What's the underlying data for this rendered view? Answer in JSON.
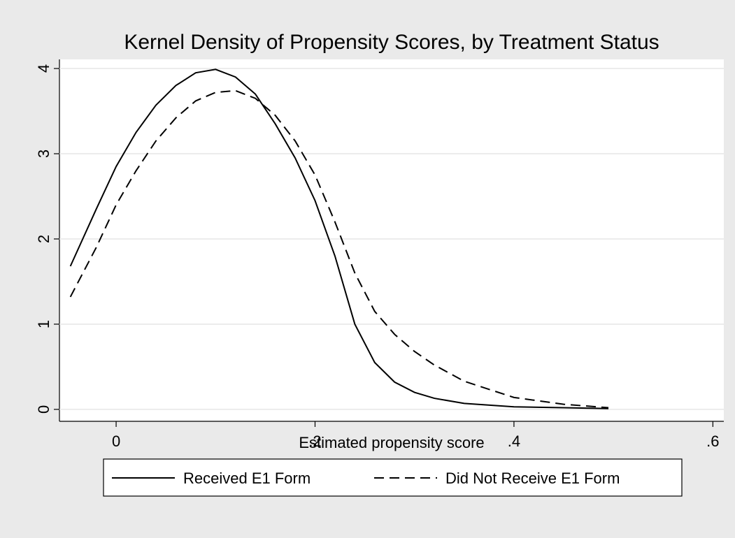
{
  "chart_data": {
    "type": "line",
    "title": "Kernel Density of Propensity Scores, by Treatment Status",
    "x_label": "Estimated propensity score",
    "x": [
      -0.046,
      -0.02,
      0,
      0.02,
      0.04,
      0.06,
      0.08,
      0.1,
      0.12,
      0.14,
      0.16,
      0.18,
      0.2,
      0.22,
      0.24,
      0.26,
      0.28,
      0.3,
      0.32,
      0.35,
      0.4,
      0.45,
      0.495
    ],
    "series": [
      {
        "name": "Received E1 Form",
        "color": "#000000",
        "line_style": "solid",
        "values": [
          1.68,
          2.35,
          2.85,
          3.25,
          3.57,
          3.8,
          3.95,
          3.99,
          3.9,
          3.7,
          3.35,
          2.95,
          2.45,
          1.8,
          1.0,
          0.55,
          0.32,
          0.2,
          0.13,
          0.07,
          0.03,
          0.02,
          0.01
        ]
      },
      {
        "name": "Did Not Receive E1 Form",
        "color": "#000000",
        "line_style": "dashed",
        "values": [
          1.32,
          1.9,
          2.4,
          2.8,
          3.15,
          3.42,
          3.62,
          3.72,
          3.74,
          3.65,
          3.45,
          3.15,
          2.75,
          2.2,
          1.6,
          1.15,
          0.88,
          0.68,
          0.52,
          0.33,
          0.14,
          0.06,
          0.02
        ]
      }
    ],
    "xlim": [
      -0.057,
      0.611
    ],
    "xticks": [
      0,
      {
        "value": 0.2,
        "label": ".2"
      },
      {
        "value": 0.4,
        "label": ".4"
      },
      {
        "value": 0.6,
        "label": ".6"
      }
    ],
    "ylim": [
      -0.14,
      4.107
    ],
    "yticks": [
      0,
      1,
      2,
      3,
      4
    ],
    "grid": true,
    "legend": "bottom"
  }
}
